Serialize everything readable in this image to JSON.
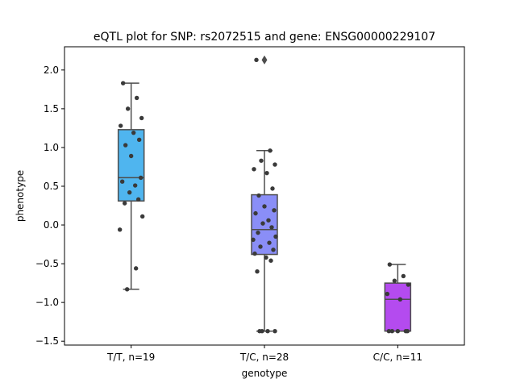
{
  "chart_data": {
    "type": "box",
    "title": "eQTL plot for SNP: rs2072515 and gene: ENSG00000229107",
    "xlabel": "genotype",
    "ylabel": "phenotype",
    "ylim": [
      -1.55,
      2.3
    ],
    "yticks": [
      -1.5,
      -1.0,
      -0.5,
      0.0,
      0.5,
      1.0,
      1.5,
      2.0
    ],
    "ytick_labels": [
      "−1.5",
      "−1.0",
      "−0.5",
      "0.0",
      "0.5",
      "1.0",
      "1.5",
      "2.0"
    ],
    "grid": false,
    "categories": [
      "T/T, n=19",
      "T/C, n=28",
      "C/C, n=11"
    ],
    "boxes": [
      {
        "category": "T/T, n=19",
        "color": "#4fb5ef",
        "q1": 0.31,
        "median": 0.61,
        "q3": 1.23,
        "whisker_low": -0.83,
        "whisker_high": 1.83,
        "outliers": [],
        "points": [
          1.83,
          1.64,
          1.5,
          1.38,
          1.28,
          1.19,
          1.1,
          1.03,
          0.89,
          0.61,
          0.56,
          0.51,
          0.42,
          0.33,
          0.28,
          0.11,
          -0.06,
          -0.56,
          -0.83
        ]
      },
      {
        "category": "T/C, n=28",
        "color": "#8a8ef7",
        "q1": -0.38,
        "median": -0.06,
        "q3": 0.39,
        "whisker_low": -1.37,
        "whisker_high": 0.96,
        "outliers": [
          2.13
        ],
        "points": [
          2.13,
          0.96,
          0.83,
          0.78,
          0.72,
          0.67,
          0.47,
          0.38,
          0.24,
          0.19,
          0.15,
          0.06,
          0.02,
          -0.03,
          -0.1,
          -0.15,
          -0.19,
          -0.23,
          -0.28,
          -0.32,
          -0.37,
          -0.42,
          -0.46,
          -0.6,
          -1.37,
          -1.37,
          -1.37,
          -1.37
        ]
      },
      {
        "category": "C/C, n=11",
        "color": "#b44bef",
        "q1": -1.37,
        "median": -0.96,
        "q3": -0.75,
        "whisker_low": -1.37,
        "whisker_high": -0.51,
        "outliers": [],
        "points": [
          -0.51,
          -0.66,
          -0.72,
          -0.77,
          -0.89,
          -0.96,
          -1.37,
          -1.37,
          -1.37,
          -1.37,
          -1.37
        ]
      }
    ]
  }
}
